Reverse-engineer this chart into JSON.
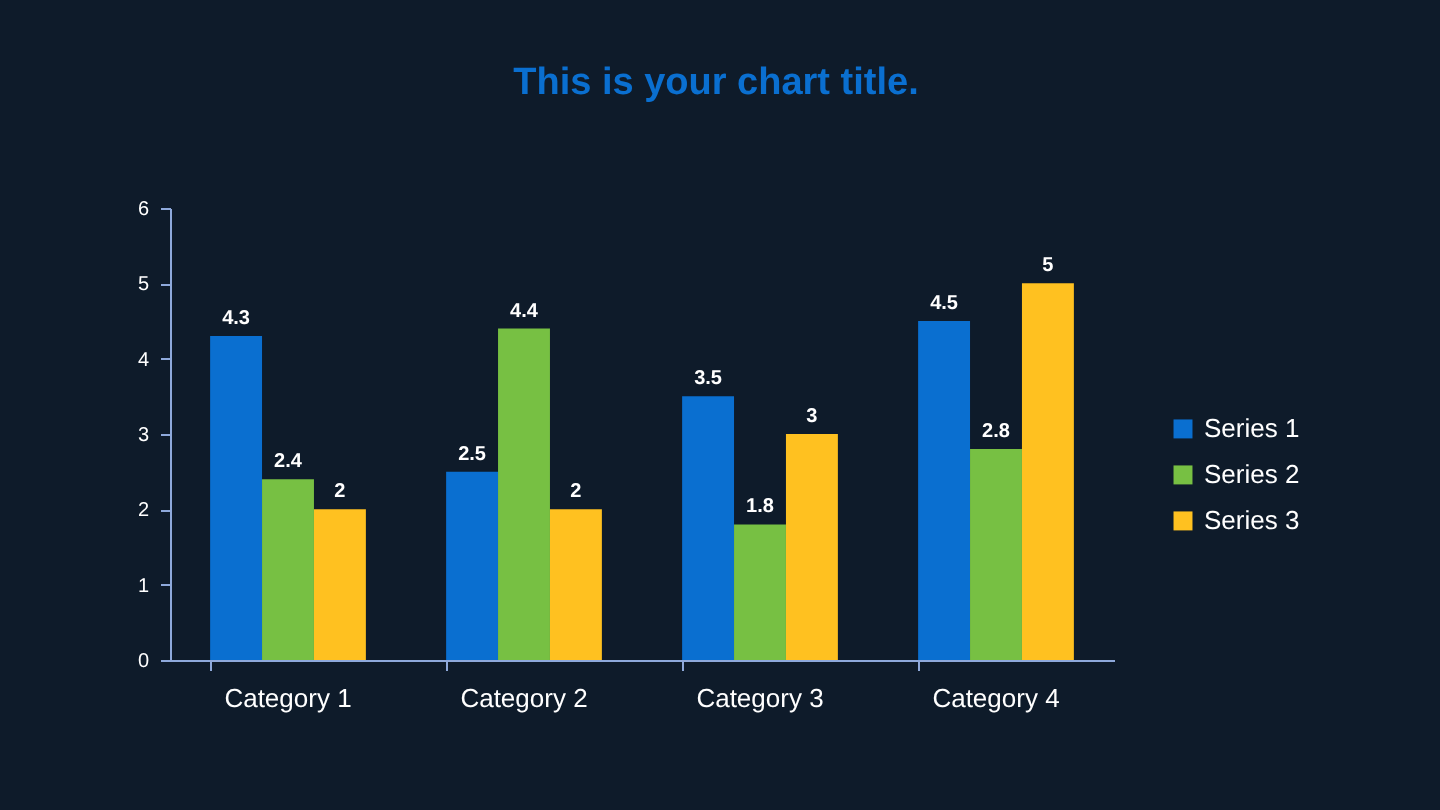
{
  "chart_data": {
    "type": "bar",
    "title": "This is your chart title.",
    "categories": [
      "Category 1",
      "Category 2",
      "Category 3",
      "Category 4"
    ],
    "series": [
      {
        "name": "Series 1",
        "color": "#0a6fd0",
        "values": [
          4.3,
          2.5,
          3.5,
          4.5
        ]
      },
      {
        "name": "Series 2",
        "color": "#77c043",
        "values": [
          2.4,
          4.4,
          1.8,
          2.8
        ]
      },
      {
        "name": "Series 3",
        "color": "#ffc120",
        "values": [
          2,
          2,
          3,
          5
        ]
      }
    ],
    "ylim": [
      0,
      6
    ],
    "yticks": [
      0,
      1,
      2,
      3,
      4,
      5,
      6
    ],
    "grid": false,
    "legend": "right",
    "data_labels": true
  }
}
